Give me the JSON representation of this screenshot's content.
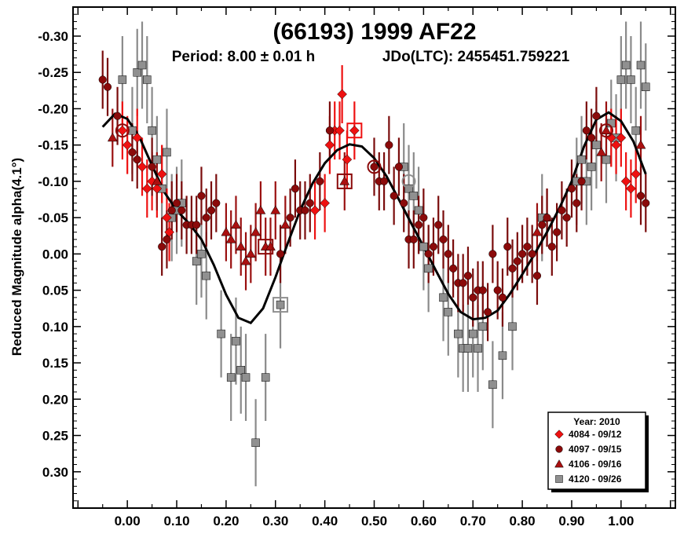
{
  "chart_data": {
    "type": "scatter",
    "title": "(66193) 1999 AF22",
    "subtitle_period": "Period: 8.00 ± 0.01 h",
    "subtitle_epoch": "JDo(LTC): 2455451.759221",
    "ylabel": "Reduced Magnitude alpha(4.1°)",
    "xlabel": "",
    "xlim": [
      -0.11,
      1.11
    ],
    "ylim": [
      0.35,
      -0.34
    ],
    "y_inverted": true,
    "x_ticks": [
      "0.00",
      "0.10",
      "0.20",
      "0.30",
      "0.40",
      "0.50",
      "0.60",
      "0.70",
      "0.80",
      "0.90",
      "1.00"
    ],
    "y_ticks": [
      "-0.30",
      "-0.25",
      "-0.20",
      "-0.15",
      "-0.10",
      "-0.05",
      "0.00",
      "0.05",
      "0.10",
      "0.15",
      "0.20",
      "0.25",
      "0.30"
    ],
    "grid": false,
    "legend_position": "bottom-right",
    "legend_title": "Year: 2010",
    "colors": {
      "s4084": "#ee1111",
      "s4097": "#8b0a0a",
      "s4106": "#aa1010",
      "s4120": "#909090",
      "fit": "#000000"
    },
    "series": [
      {
        "name": "4084 - 09/12",
        "marker": "diamond",
        "points": [
          [
            -0.01,
            -0.17,
            0.04
          ],
          [
            0.0,
            -0.15,
            0.04
          ],
          [
            0.02,
            -0.16,
            0.04
          ],
          [
            0.03,
            -0.12,
            0.04
          ],
          [
            0.04,
            -0.09,
            0.04
          ],
          [
            0.05,
            -0.1,
            0.04
          ],
          [
            0.06,
            -0.09,
            0.04
          ],
          [
            0.07,
            -0.11,
            0.04
          ],
          [
            0.08,
            -0.05,
            0.04
          ],
          [
            0.085,
            -0.03,
            0.04
          ],
          [
            0.38,
            -0.06,
            0.04
          ],
          [
            0.4,
            -0.07,
            0.04
          ],
          [
            0.41,
            -0.15,
            0.04
          ],
          [
            0.42,
            -0.17,
            0.04
          ],
          [
            0.43,
            -0.17,
            0.04
          ],
          [
            0.435,
            -0.22,
            0.04
          ],
          [
            0.445,
            -0.13,
            0.04
          ],
          [
            0.46,
            -0.17,
            0.04
          ],
          [
            0.98,
            -0.16,
            0.04
          ],
          [
            0.99,
            -0.15,
            0.04
          ],
          [
            1.0,
            -0.16,
            0.04
          ],
          [
            1.01,
            -0.1,
            0.04
          ],
          [
            1.02,
            -0.09,
            0.04
          ],
          [
            1.03,
            -0.11,
            0.04
          ]
        ]
      },
      {
        "name": "4097 - 09/15",
        "marker": "circle",
        "points": [
          [
            -0.05,
            -0.24,
            0.04
          ],
          [
            -0.04,
            -0.23,
            0.04
          ],
          [
            -0.02,
            -0.19,
            0.04
          ],
          [
            0.01,
            -0.14,
            0.04
          ],
          [
            0.02,
            -0.13,
            0.04
          ],
          [
            0.05,
            -0.12,
            0.04
          ],
          [
            0.07,
            -0.01,
            0.04
          ],
          [
            0.08,
            -0.02,
            0.04
          ],
          [
            0.09,
            -0.06,
            0.04
          ],
          [
            0.1,
            -0.07,
            0.04
          ],
          [
            0.11,
            -0.06,
            0.04
          ],
          [
            0.12,
            -0.04,
            0.04
          ],
          [
            0.13,
            -0.04,
            0.04
          ],
          [
            0.14,
            -0.04,
            0.04
          ],
          [
            0.15,
            -0.08,
            0.04
          ],
          [
            0.16,
            -0.05,
            0.04
          ],
          [
            0.17,
            -0.06,
            0.04
          ],
          [
            0.18,
            -0.07,
            0.04
          ],
          [
            0.31,
            0.0,
            0.04
          ],
          [
            0.33,
            -0.05,
            0.04
          ],
          [
            0.34,
            -0.09,
            0.04
          ],
          [
            0.35,
            -0.06,
            0.04
          ],
          [
            0.36,
            -0.06,
            0.04
          ],
          [
            0.37,
            -0.07,
            0.04
          ],
          [
            0.39,
            -0.1,
            0.04
          ],
          [
            0.41,
            -0.17,
            0.04
          ],
          [
            0.5,
            -0.12,
            0.04
          ],
          [
            0.51,
            -0.1,
            0.04
          ],
          [
            0.52,
            -0.1,
            0.04
          ],
          [
            0.53,
            -0.15,
            0.04
          ],
          [
            0.54,
            -0.08,
            0.04
          ],
          [
            0.55,
            -0.12,
            0.04
          ],
          [
            0.56,
            -0.07,
            0.04
          ],
          [
            0.57,
            -0.02,
            0.04
          ],
          [
            0.58,
            -0.02,
            0.04
          ],
          [
            0.59,
            -0.04,
            0.04
          ],
          [
            0.6,
            -0.05,
            0.04
          ],
          [
            0.61,
            0.0,
            0.04
          ],
          [
            0.62,
            -0.01,
            0.04
          ],
          [
            0.63,
            -0.04,
            0.04
          ],
          [
            0.64,
            -0.02,
            0.04
          ],
          [
            0.65,
            0.0,
            0.04
          ],
          [
            0.66,
            0.02,
            0.04
          ],
          [
            0.67,
            0.04,
            0.04
          ],
          [
            0.68,
            0.04,
            0.04
          ],
          [
            0.69,
            0.03,
            0.04
          ],
          [
            0.7,
            0.06,
            0.04
          ],
          [
            0.71,
            0.05,
            0.04
          ],
          [
            0.72,
            0.05,
            0.04
          ],
          [
            0.73,
            0.08,
            0.04
          ],
          [
            0.74,
            0.0,
            0.04
          ],
          [
            0.75,
            0.05,
            0.04
          ],
          [
            0.76,
            0.06,
            0.04
          ],
          [
            0.77,
            -0.01,
            0.04
          ],
          [
            0.78,
            0.02,
            0.04
          ],
          [
            0.79,
            0.01,
            0.04
          ],
          [
            0.8,
            0.0,
            0.04
          ],
          [
            0.81,
            -0.01,
            0.04
          ],
          [
            0.82,
            0.0,
            0.04
          ],
          [
            0.83,
            0.03,
            0.04
          ],
          [
            0.84,
            -0.04,
            0.04
          ],
          [
            0.85,
            -0.05,
            0.04
          ],
          [
            0.86,
            -0.01,
            0.04
          ],
          [
            0.87,
            -0.03,
            0.04
          ],
          [
            0.88,
            -0.06,
            0.04
          ],
          [
            0.89,
            -0.05,
            0.04
          ],
          [
            0.9,
            -0.09,
            0.04
          ],
          [
            0.91,
            -0.07,
            0.04
          ],
          [
            0.92,
            -0.1,
            0.04
          ],
          [
            0.93,
            -0.17,
            0.04
          ],
          [
            0.94,
            -0.16,
            0.04
          ],
          [
            0.95,
            -0.19,
            0.04
          ],
          [
            1.04,
            -0.08,
            0.04
          ],
          [
            1.05,
            -0.07,
            0.04
          ]
        ]
      },
      {
        "name": "4106 - 09/16",
        "marker": "triangle",
        "points": [
          [
            -0.03,
            -0.16,
            0.04
          ],
          [
            0.06,
            -0.1,
            0.04
          ],
          [
            0.2,
            -0.03,
            0.04
          ],
          [
            0.21,
            -0.02,
            0.04
          ],
          [
            0.22,
            -0.04,
            0.04
          ],
          [
            0.23,
            -0.01,
            0.04
          ],
          [
            0.24,
            0.01,
            0.04
          ],
          [
            0.25,
            0.0,
            0.04
          ],
          [
            0.26,
            -0.03,
            0.04
          ],
          [
            0.27,
            -0.06,
            0.04
          ],
          [
            0.28,
            -0.01,
            0.04
          ],
          [
            0.29,
            -0.01,
            0.04
          ],
          [
            0.3,
            -0.06,
            0.04
          ],
          [
            0.32,
            -0.04,
            0.04
          ],
          [
            0.44,
            -0.1,
            0.04
          ],
          [
            0.83,
            -0.03,
            0.04
          ],
          [
            0.85,
            -0.05,
            0.04
          ],
          [
            0.96,
            -0.14,
            0.04
          ],
          [
            0.97,
            -0.17,
            0.04
          ],
          [
            1.04,
            -0.15,
            0.04
          ]
        ]
      },
      {
        "name": "4120 - 09/26",
        "marker": "square",
        "points": [
          [
            -0.01,
            -0.24,
            0.06
          ],
          [
            0.01,
            -0.17,
            0.06
          ],
          [
            0.02,
            -0.25,
            0.06
          ],
          [
            0.03,
            -0.26,
            0.06
          ],
          [
            0.04,
            -0.24,
            0.06
          ],
          [
            0.05,
            -0.17,
            0.06
          ],
          [
            0.06,
            -0.13,
            0.06
          ],
          [
            0.07,
            -0.09,
            0.06
          ],
          [
            0.08,
            -0.14,
            0.06
          ],
          [
            0.09,
            -0.05,
            0.06
          ],
          [
            0.1,
            -0.06,
            0.06
          ],
          [
            0.11,
            -0.07,
            0.06
          ],
          [
            0.14,
            0.01,
            0.06
          ],
          [
            0.15,
            0.0,
            0.06
          ],
          [
            0.16,
            0.03,
            0.06
          ],
          [
            0.19,
            0.11,
            0.06
          ],
          [
            0.21,
            0.17,
            0.06
          ],
          [
            0.22,
            0.12,
            0.06
          ],
          [
            0.23,
            0.16,
            0.06
          ],
          [
            0.24,
            0.17,
            0.06
          ],
          [
            0.26,
            0.26,
            0.06
          ],
          [
            0.28,
            0.17,
            0.06
          ],
          [
            0.31,
            0.07,
            0.06
          ],
          [
            0.56,
            -0.12,
            0.06
          ],
          [
            0.57,
            -0.09,
            0.06
          ],
          [
            0.58,
            -0.08,
            0.06
          ],
          [
            0.59,
            -0.06,
            0.06
          ],
          [
            0.6,
            -0.01,
            0.06
          ],
          [
            0.61,
            0.02,
            0.06
          ],
          [
            0.64,
            0.06,
            0.06
          ],
          [
            0.65,
            0.08,
            0.06
          ],
          [
            0.67,
            0.11,
            0.06
          ],
          [
            0.68,
            0.13,
            0.06
          ],
          [
            0.69,
            0.13,
            0.06
          ],
          [
            0.7,
            0.11,
            0.06
          ],
          [
            0.71,
            0.13,
            0.06
          ],
          [
            0.72,
            0.1,
            0.06
          ],
          [
            0.74,
            0.18,
            0.06
          ],
          [
            0.76,
            0.14,
            0.06
          ],
          [
            0.78,
            0.1,
            0.06
          ],
          [
            0.84,
            -0.05,
            0.06
          ],
          [
            0.91,
            -0.1,
            0.06
          ],
          [
            0.92,
            -0.13,
            0.06
          ],
          [
            0.93,
            -0.1,
            0.06
          ],
          [
            0.94,
            -0.12,
            0.06
          ],
          [
            0.95,
            -0.15,
            0.06
          ],
          [
            0.97,
            -0.13,
            0.06
          ],
          [
            0.98,
            -0.18,
            0.06
          ],
          [
            0.99,
            -0.16,
            0.06
          ],
          [
            1.0,
            -0.24,
            0.06
          ],
          [
            1.01,
            -0.26,
            0.06
          ],
          [
            1.02,
            -0.24,
            0.06
          ],
          [
            1.03,
            -0.17,
            0.06
          ],
          [
            1.04,
            -0.26,
            0.06
          ],
          [
            1.05,
            -0.23,
            0.06
          ]
        ]
      }
    ],
    "highlighted_points": [
      {
        "series": "4084 - 09/12",
        "x": 0.46,
        "y": -0.17,
        "marker": "square-outline"
      },
      {
        "series": "4097 - 09/15",
        "x": 0.44,
        "y": -0.1,
        "marker": "square-outline"
      },
      {
        "series": "4097 - 09/15",
        "x": 0.28,
        "y": -0.01,
        "marker": "square-outline"
      },
      {
        "series": "4120 - 09/26",
        "x": 0.31,
        "y": 0.07,
        "marker": "square-outline"
      },
      {
        "series": "4097 - 09/15",
        "x": -0.01,
        "y": -0.17,
        "marker": "circle-outline"
      },
      {
        "series": "4097 - 09/15",
        "x": 0.5,
        "y": -0.12,
        "marker": "circle-outline"
      },
      {
        "series": "4120 - 09/26",
        "x": 0.57,
        "y": -0.1,
        "marker": "circle-outline"
      },
      {
        "series": "4097 - 09/15",
        "x": 0.97,
        "y": -0.17,
        "marker": "circle-outline"
      }
    ],
    "fit_curve": {
      "x": [
        -0.05,
        -0.025,
        0.0,
        0.025,
        0.05,
        0.075,
        0.1,
        0.125,
        0.15,
        0.175,
        0.2,
        0.225,
        0.25,
        0.275,
        0.3,
        0.325,
        0.35,
        0.375,
        0.4,
        0.425,
        0.45,
        0.475,
        0.5,
        0.525,
        0.55,
        0.575,
        0.6,
        0.625,
        0.65,
        0.675,
        0.7,
        0.725,
        0.75,
        0.775,
        0.8,
        0.825,
        0.85,
        0.875,
        0.9,
        0.925,
        0.95,
        0.975,
        1.0,
        1.025,
        1.05
      ],
      "y": [
        -0.175,
        -0.193,
        -0.186,
        -0.16,
        -0.122,
        -0.085,
        -0.06,
        -0.042,
        -0.02,
        0.015,
        0.056,
        0.088,
        0.095,
        0.075,
        0.032,
        -0.015,
        -0.06,
        -0.097,
        -0.125,
        -0.143,
        -0.151,
        -0.148,
        -0.132,
        -0.107,
        -0.075,
        -0.042,
        -0.01,
        0.023,
        0.055,
        0.08,
        0.09,
        0.088,
        0.078,
        0.055,
        0.028,
        0.0,
        -0.03,
        -0.063,
        -0.1,
        -0.148,
        -0.185,
        -0.195,
        -0.183,
        -0.155,
        -0.11
      ]
    }
  }
}
